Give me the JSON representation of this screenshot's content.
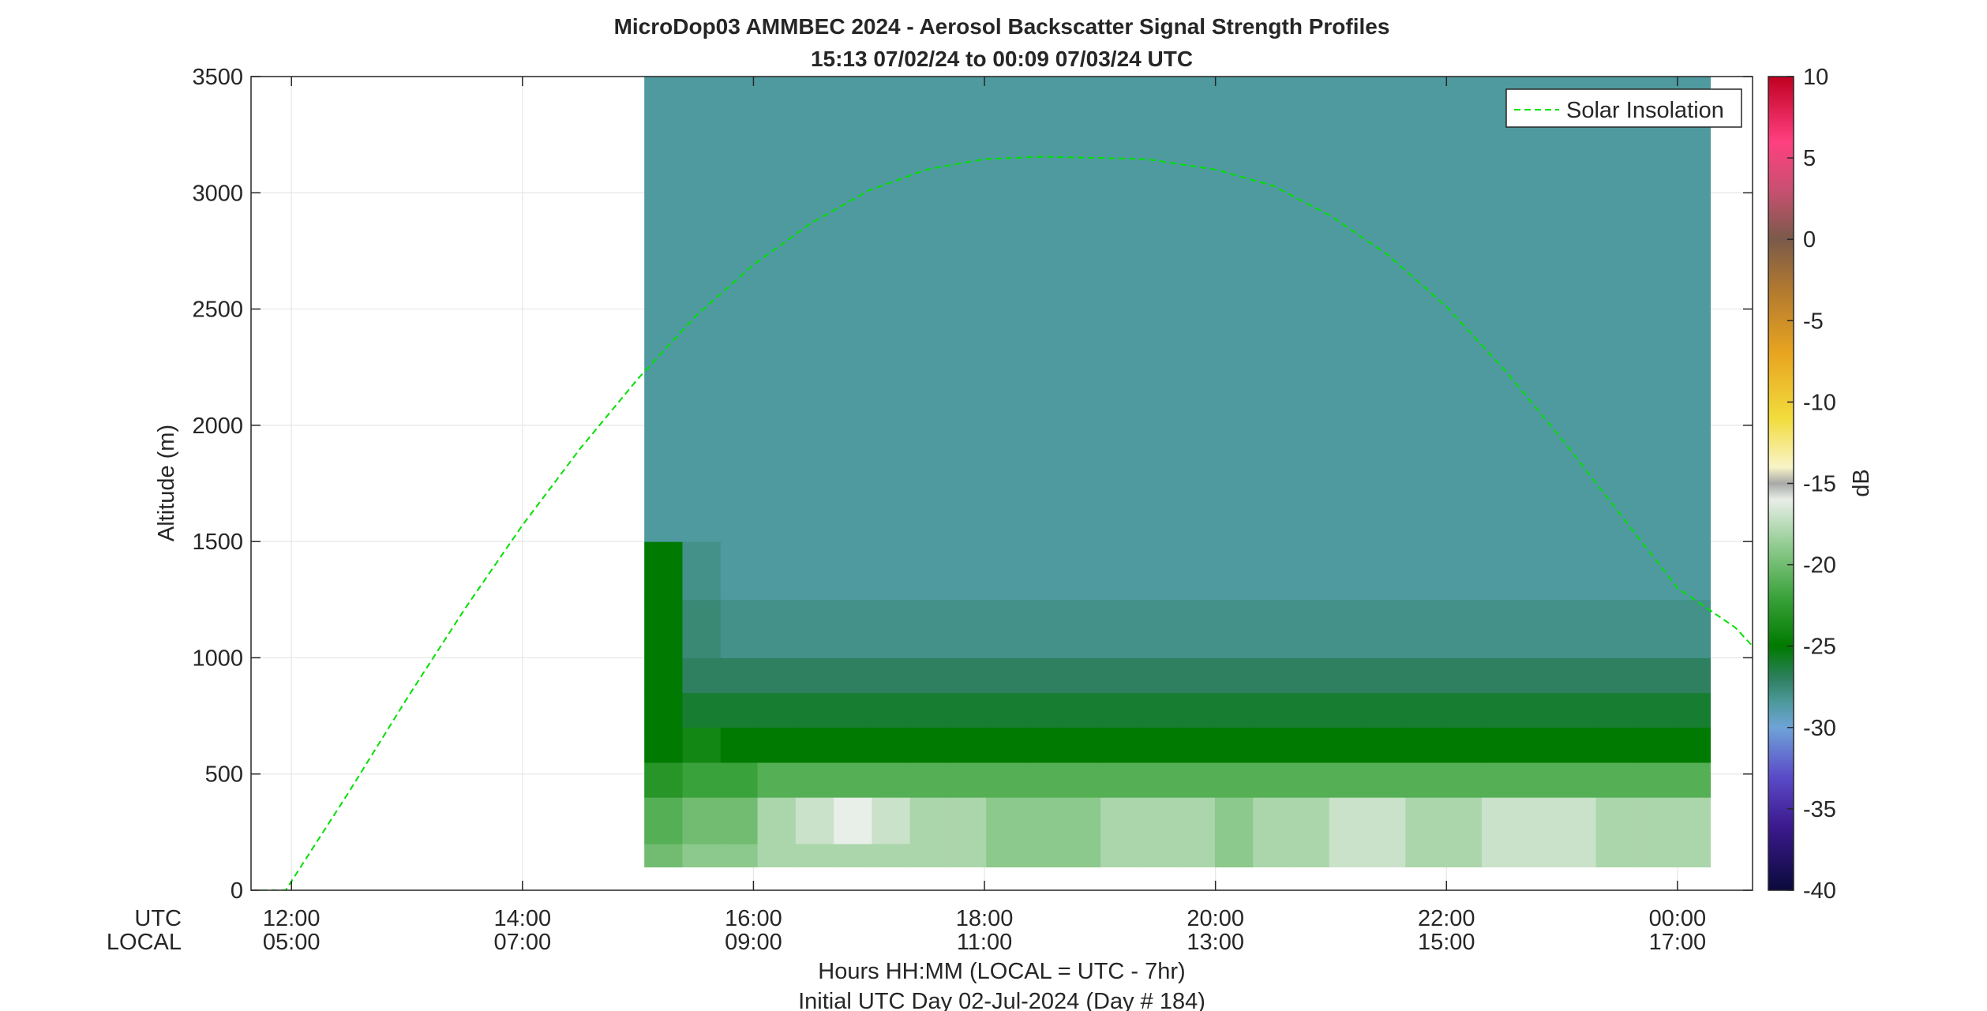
{
  "title": {
    "line1": "MicroDop03 AMMBEC 2024 - Aerosol Backscatter Signal Strength Profiles",
    "line2": "15:13 07/02/24 to 00:09 07/03/24  UTC"
  },
  "axes": {
    "ylabel": "Altitude (m)",
    "xlabel_line1": "Hours HH:MM  (LOCAL = UTC - 7hr)",
    "xlabel_line2": "Initial UTC Day 02-Jul-2024 (Day # 184)",
    "utc_label": "UTC",
    "local_label": "LOCAL"
  },
  "colorbar": {
    "label": "dB",
    "range": [
      -40,
      10
    ],
    "ticks": [
      "10",
      "5",
      "0",
      "-5",
      "-10",
      "-15",
      "-20",
      "-25",
      "-30",
      "-35",
      "-40"
    ],
    "tick_values": [
      10,
      5,
      0,
      -5,
      -10,
      -15,
      -20,
      -25,
      -30,
      -35,
      -40
    ],
    "stops": [
      {
        "v": -40,
        "c": "#0a0a3c"
      },
      {
        "v": -36,
        "c": "#3d1a8f"
      },
      {
        "v": -33,
        "c": "#5a4cc8"
      },
      {
        "v": -30,
        "c": "#6fa3d8"
      },
      {
        "v": -28.5,
        "c": "#4e9a9e"
      },
      {
        "v": -27,
        "c": "#2e8060"
      },
      {
        "v": -25,
        "c": "#007a00"
      },
      {
        "v": -22,
        "c": "#3aa23a"
      },
      {
        "v": -19,
        "c": "#8cc98c"
      },
      {
        "v": -16,
        "c": "#e8eee8"
      },
      {
        "v": -15,
        "c": "#a8a8a8"
      },
      {
        "v": -14,
        "c": "#f8f4c8"
      },
      {
        "v": -11,
        "c": "#f2dc3c"
      },
      {
        "v": -7,
        "c": "#e8a420"
      },
      {
        "v": -3,
        "c": "#b07830"
      },
      {
        "v": 0,
        "c": "#7a5a4a"
      },
      {
        "v": 3,
        "c": "#c85070"
      },
      {
        "v": 6,
        "c": "#ff4080"
      },
      {
        "v": 10,
        "c": "#c00020"
      }
    ]
  },
  "chart_data": {
    "type": "heatmap",
    "x_unit": "hours UTC since 2024-07-02 00:00",
    "xlim": [
      11.65,
      24.65
    ],
    "ylim": [
      0,
      3500
    ],
    "x_ticks_utc": [
      "12:00",
      "14:00",
      "16:00",
      "18:00",
      "20:00",
      "22:00",
      "00:00"
    ],
    "x_ticks_local": [
      "05:00",
      "07:00",
      "09:00",
      "11:00",
      "13:00",
      "15:00",
      "17:00"
    ],
    "x_tick_values": [
      12,
      14,
      16,
      18,
      20,
      22,
      24
    ],
    "y_ticks": [
      "0",
      "500",
      "1000",
      "1500",
      "2000",
      "2500",
      "3000",
      "3500"
    ],
    "y_tick_values": [
      0,
      500,
      1000,
      1500,
      2000,
      2500,
      3000,
      3500
    ],
    "grid": true,
    "legend": {
      "position": "top-right",
      "entries": [
        "Solar Insolation"
      ]
    },
    "profile_times_utc_hours": [
      15.22,
      15.55,
      15.88,
      16.2,
      16.53,
      16.86,
      17.19,
      17.52,
      17.85,
      18.18,
      18.51,
      18.84,
      19.17,
      19.5,
      19.83,
      20.16,
      20.49,
      20.82,
      21.15,
      21.48,
      21.81,
      22.14,
      22.47,
      22.8,
      23.13,
      23.46,
      23.79,
      24.12
    ],
    "layer_height_tops_m": [
      200,
      400,
      550,
      700,
      850,
      1000,
      1250,
      1500
    ],
    "layer_backscatter_db": [
      [
        -20,
        -19,
        -19,
        -18,
        -18,
        -18,
        -18,
        -18,
        -18,
        -19,
        -19,
        -19,
        -18,
        -18,
        -18,
        -19,
        -18,
        -18,
        -17,
        -17,
        -18,
        -18,
        -17,
        -17,
        -17,
        -18,
        -18,
        -18
      ],
      [
        -21,
        -20,
        -20,
        -18,
        -17,
        -16,
        -17,
        -18,
        -18,
        -19,
        -19,
        -19,
        -18,
        -18,
        -18,
        -19,
        -18,
        -18,
        -17,
        -17,
        -18,
        -18,
        -17,
        -17,
        -17,
        -18,
        -18,
        -18
      ],
      [
        -23,
        -22,
        -22,
        -21,
        -21,
        -21,
        -21,
        -21,
        -21,
        -21,
        -21,
        -21,
        -21,
        -21,
        -21,
        -21,
        -21,
        -21,
        -21,
        -21,
        -21,
        -21,
        -21,
        -21,
        -21,
        -21,
        -21,
        -21
      ],
      [
        -25,
        -24,
        -25,
        -25,
        -25,
        -25,
        -25,
        -25,
        -25,
        -25,
        -25,
        -25,
        -25,
        -25,
        -25,
        -25,
        -25,
        -25,
        -25,
        -25,
        -25,
        -25,
        -25,
        -25,
        -25,
        -25,
        -25,
        -25
      ],
      [
        -25,
        -26,
        -26,
        -26,
        -26,
        -26,
        -26,
        -26,
        -26,
        -26,
        -26,
        -26,
        -26,
        -26,
        -26,
        -26,
        -26,
        -26,
        -26,
        -26,
        -26,
        -26,
        -26,
        -26,
        -26,
        -26,
        -26,
        -26
      ],
      [
        -25,
        -27,
        -27,
        -27,
        -27,
        -27,
        -27,
        -27,
        -27,
        -27,
        -27,
        -27,
        -27,
        -27,
        -27,
        -27,
        -27,
        -27,
        -27,
        -27,
        -27,
        -27,
        -27,
        -27,
        -27,
        -27,
        -27,
        -27
      ],
      [
        -25,
        -27.5,
        -28,
        -28,
        -28,
        -28,
        -28,
        -28,
        -28,
        -28,
        -28,
        -28,
        -28,
        -28,
        -28,
        -28,
        -28,
        -28,
        -28,
        -28,
        -28,
        -28,
        -28,
        -28,
        -28,
        -28,
        -28,
        -28
      ],
      [
        -25,
        -28,
        -28.5,
        -28.5,
        -28.5,
        -28.5,
        -28.5,
        -28.5,
        -28.5,
        -28.5,
        -28.5,
        -28.5,
        -28.5,
        -28.5,
        -28.5,
        -28.5,
        -28.5,
        -28.5,
        -28.5,
        -28.5,
        -28.5,
        -28.5,
        -28.5,
        -28.5,
        -28.5,
        -28.5,
        -28.5,
        -28.5
      ]
    ],
    "upper_level_db": -28.5,
    "solar_insolation": {
      "name": "Solar Insolation",
      "color": "#00e000",
      "x": [
        11.65,
        11.95,
        12.5,
        13.0,
        13.5,
        14.0,
        14.5,
        15.0,
        15.5,
        16.0,
        16.5,
        17.0,
        17.5,
        18.0,
        18.5,
        19.0,
        19.4,
        20.0,
        20.5,
        21.0,
        21.5,
        22.0,
        22.5,
        23.0,
        23.5,
        24.0,
        24.5,
        24.65
      ],
      "y": [
        0,
        0,
        425,
        825,
        1210,
        1570,
        1900,
        2200,
        2470,
        2690,
        2870,
        3010,
        3100,
        3145,
        3155,
        3150,
        3145,
        3100,
        3030,
        2900,
        2730,
        2510,
        2240,
        1940,
        1620,
        1300,
        1130,
        1050
      ]
    }
  }
}
